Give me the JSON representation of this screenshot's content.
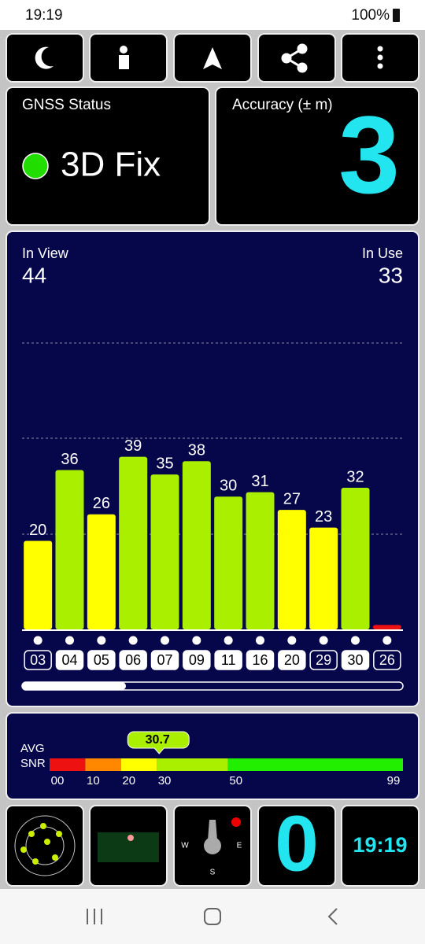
{
  "status_bar": {
    "time": "19:19",
    "battery": "100%"
  },
  "gnss_status": {
    "label": "GNSS Status",
    "fix": "3D Fix"
  },
  "accuracy": {
    "label": "Accuracy (± m)",
    "value": "3"
  },
  "satellites": {
    "in_view_label": "In View",
    "in_view": "44",
    "in_use_label": "In Use",
    "in_use": "33"
  },
  "chart_data": {
    "type": "bar",
    "categories": [
      "03",
      "04",
      "05",
      "06",
      "07",
      "09",
      "11",
      "16",
      "20",
      "29",
      "30",
      "26"
    ],
    "values": [
      20,
      36,
      26,
      39,
      35,
      38,
      30,
      31,
      27,
      23,
      32,
      1
    ],
    "value_labels": [
      "20",
      "36",
      "26",
      "39",
      "35",
      "38",
      "30",
      "31",
      "27",
      "23",
      "32",
      null
    ],
    "colors": [
      "#ffff00",
      "#aaee00",
      "#ffff00",
      "#aaee00",
      "#aaee00",
      "#aaee00",
      "#aaee00",
      "#aaee00",
      "#ffff00",
      "#ffff00",
      "#aaee00",
      "#ee1111"
    ],
    "in_use": [
      false,
      true,
      true,
      true,
      true,
      true,
      true,
      true,
      true,
      false,
      true,
      false
    ],
    "ylim": [
      0,
      72
    ]
  },
  "snr_scale": {
    "label_1": "AVG",
    "label_2": "SNR",
    "average": 30.7,
    "xlim": [
      0,
      99
    ],
    "xticks": [
      {
        "value": 0,
        "label": "00"
      },
      10,
      20,
      30,
      50,
      99
    ],
    "band_colors": [
      "#ee1111",
      "#ff8800",
      "#ffff00",
      "#aaee00",
      "#22ee00"
    ]
  },
  "bottom_tiles": {
    "speed": "0",
    "clock": "19:19",
    "compass_w": "W",
    "compass_e": "E",
    "compass_s": "S"
  }
}
